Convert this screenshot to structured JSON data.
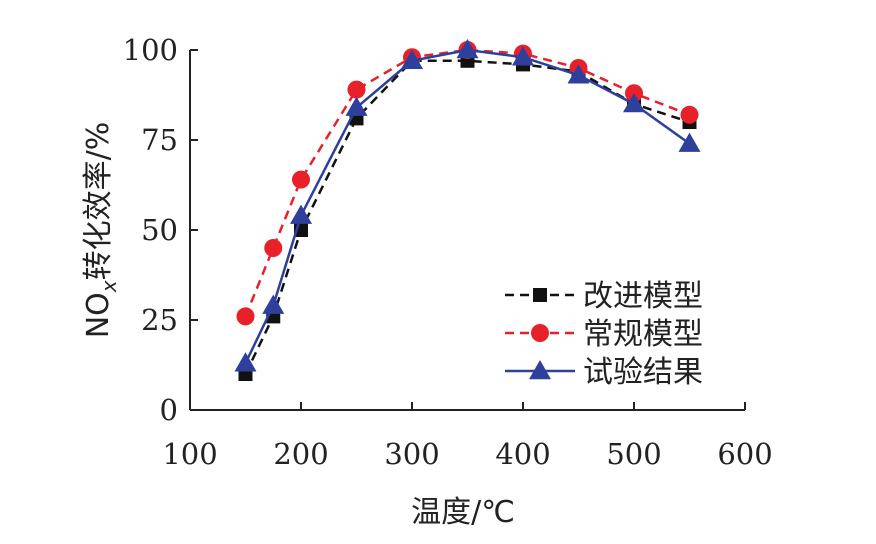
{
  "chart_data": {
    "type": "line",
    "title": "",
    "xlabel": "温度/℃",
    "ylabel_main": "NO",
    "ylabel_sub": "x",
    "ylabel_rest": "转化效率/%",
    "xlim": [
      100,
      600
    ],
    "ylim": [
      0,
      100
    ],
    "xticks": [
      100,
      200,
      300,
      400,
      500,
      600
    ],
    "yticks": [
      0,
      25,
      50,
      75,
      100
    ],
    "legend_position": "bottom-right",
    "grid": false,
    "x": [
      150,
      175,
      200,
      250,
      300,
      350,
      400,
      450,
      500,
      550
    ],
    "series": [
      {
        "name": "改进模型",
        "color": "#111111",
        "line_style": "dashed",
        "marker": "square",
        "values": [
          10,
          26,
          50,
          81,
          97,
          97,
          96,
          94,
          85,
          80
        ]
      },
      {
        "name": "常规模型",
        "color": "#e8202a",
        "line_style": "dashed",
        "marker": "circle",
        "values": [
          26,
          45,
          64,
          89,
          98,
          100,
          99,
          95,
          88,
          82
        ]
      },
      {
        "name": "试验结果",
        "color": "#2f3f9c",
        "line_style": "solid",
        "marker": "triangle",
        "values": [
          13,
          29,
          54,
          84,
          97,
          100,
          98,
          93,
          85,
          74
        ]
      }
    ]
  }
}
